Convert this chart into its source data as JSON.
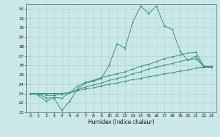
{
  "xlabel": "Humidex (Indice chaleur)",
  "x": [
    0,
    1,
    2,
    3,
    4,
    5,
    6,
    7,
    8,
    9,
    10,
    11,
    12,
    13,
    14,
    15,
    16,
    17,
    18,
    19,
    20,
    21,
    22,
    23
  ],
  "line1": [
    23,
    22.8,
    22.2,
    22.5,
    21.2,
    22.2,
    23.5,
    24.1,
    24.3,
    24.6,
    26.0,
    28.3,
    27.8,
    30.6,
    32.3,
    31.5,
    32.3,
    30.2,
    29.8,
    27.5,
    26.5,
    27.0,
    25.8,
    25.8
  ],
  "line2": [
    23,
    23,
    22.5,
    22.6,
    22.5,
    23.1,
    23.8,
    24.2,
    24.4,
    24.7,
    24.9,
    25.1,
    25.3,
    25.6,
    25.9,
    26.1,
    26.4,
    26.7,
    26.9,
    27.1,
    27.3,
    27.4,
    25.9,
    25.9
  ],
  "line3": [
    23,
    23,
    22.8,
    22.8,
    22.9,
    23.1,
    23.4,
    23.7,
    23.9,
    24.1,
    24.4,
    24.6,
    24.8,
    25.1,
    25.3,
    25.6,
    25.8,
    26.0,
    26.2,
    26.4,
    26.6,
    26.7,
    25.9,
    25.9
  ],
  "line4": [
    23,
    23,
    23.0,
    23.0,
    23.0,
    23.1,
    23.3,
    23.5,
    23.6,
    23.8,
    24.0,
    24.1,
    24.3,
    24.5,
    24.6,
    24.8,
    24.9,
    25.1,
    25.2,
    25.4,
    25.5,
    25.7,
    25.8,
    25.8
  ],
  "line_color": "#2E8B7A",
  "bg_color": "#CBE8E8",
  "grid_color": "#AACCCC",
  "xlim": [
    -0.5,
    23.5
  ],
  "ylim": [
    21,
    32.5
  ],
  "yticks": [
    21,
    22,
    23,
    24,
    25,
    26,
    27,
    28,
    29,
    30,
    31,
    32
  ],
  "xticks": [
    0,
    1,
    2,
    3,
    4,
    5,
    6,
    7,
    8,
    9,
    10,
    11,
    12,
    13,
    14,
    15,
    16,
    17,
    18,
    19,
    20,
    21,
    22,
    23
  ]
}
